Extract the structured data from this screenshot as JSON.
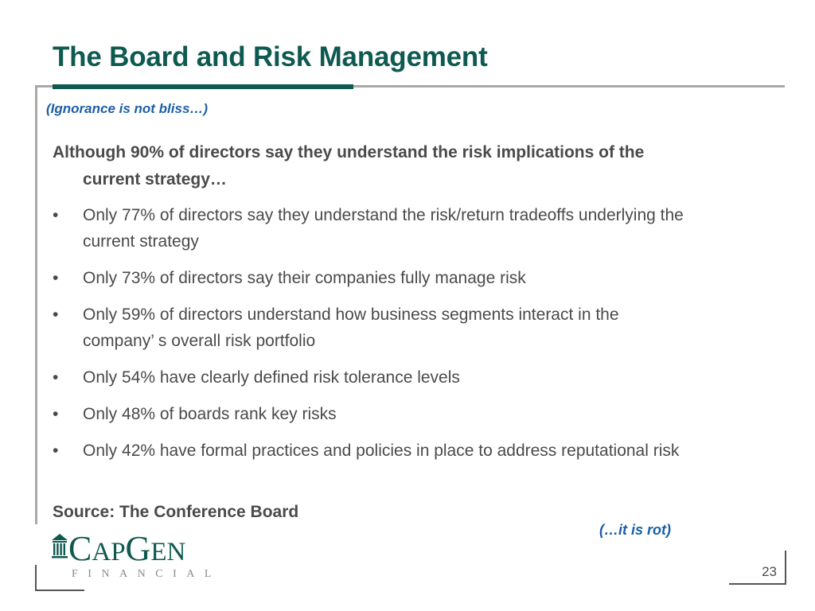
{
  "slide": {
    "title": "The Board and Risk Management",
    "subtitle": "(Ignorance is not bliss…)",
    "intro": "Although 90% of directors say they understand the risk implications of the current strategy…",
    "bullet_glyph": "•",
    "bullets": [
      "Only 77% of directors say they understand the risk/return tradeoffs underlying the current strategy",
      "Only 73% of directors say their companies fully manage risk",
      "Only 59% of directors understand how business segments interact in the company’ s overall risk portfolio",
      "Only 54% have clearly defined risk tolerance levels",
      "Only 48% of boards rank key risks",
      "Only 42% have formal practices and policies in place to address reputational risk"
    ],
    "source": "Source:  The Conference Board",
    "closing": "(…it is rot)",
    "page_number": "23"
  },
  "logo": {
    "word_parts": [
      "C",
      "AP",
      "G",
      "EN"
    ],
    "subtitle": "FINANCIAL",
    "icon": "building-columns-icon"
  },
  "colors": {
    "title": "#0e5a50",
    "accent_text": "#1b5fa8",
    "body_text": "#4a4a4a",
    "rule_gray": "#a8a8a8"
  }
}
